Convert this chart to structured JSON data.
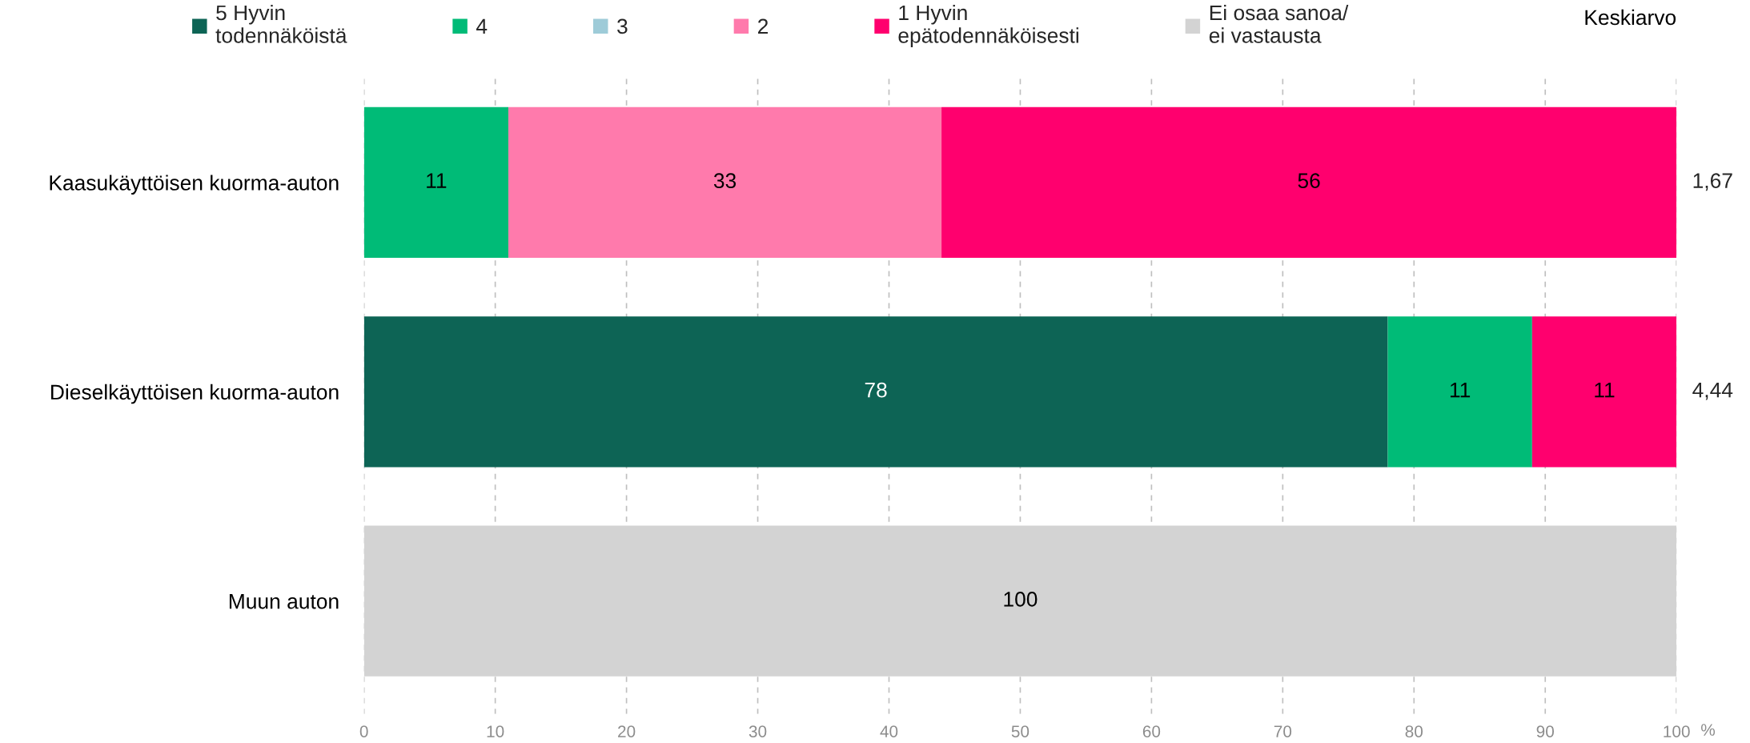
{
  "chart_data": {
    "type": "bar",
    "orientation": "horizontal",
    "stacked": true,
    "categories": [
      "Kaasukäyttöisen kuorma-auton",
      "Dieselkäyttöisen kuorma-auton",
      "Muun auton"
    ],
    "series": [
      {
        "name": "5 Hyvin\ntodennäköistä",
        "color": "#0d6455",
        "values": [
          null,
          78,
          null
        ]
      },
      {
        "name": "4",
        "color": "#00bb77",
        "values": [
          11,
          11,
          null
        ]
      },
      {
        "name": "3",
        "color": "#9ecbd8",
        "values": [
          null,
          null,
          null
        ]
      },
      {
        "name": "2",
        "color": "#ff7aac",
        "values": [
          33,
          null,
          null
        ]
      },
      {
        "name": "1 Hyvin\nepätodennäköisesti",
        "color": "#ff006e",
        "values": [
          56,
          11,
          null
        ]
      },
      {
        "name": "Ei osaa sanoa/\nei vastausta",
        "color": "#d3d3d3",
        "values": [
          null,
          null,
          100
        ]
      }
    ],
    "xlim": [
      0,
      100
    ],
    "xticks": [
      0,
      10,
      20,
      30,
      40,
      50,
      60,
      70,
      80,
      90,
      100
    ],
    "xlabel": "%",
    "grid": "x",
    "legend": "top",
    "data_labels": true,
    "annotations": [
      "Keskiarvo",
      "1,67",
      "4,44"
    ]
  }
}
